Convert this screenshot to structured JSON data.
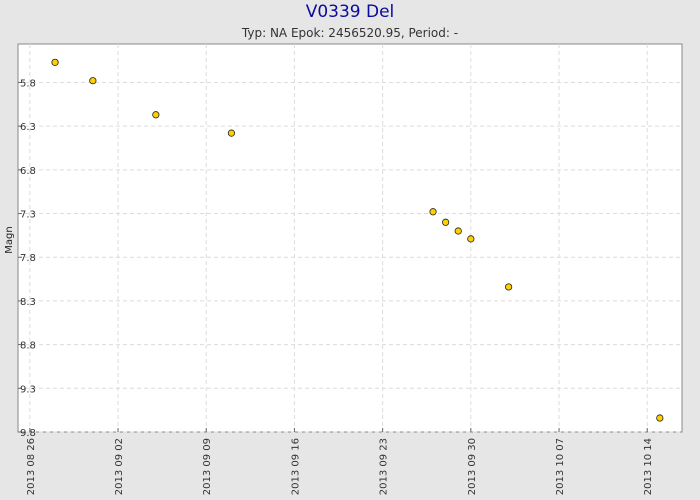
{
  "chart_data": {
    "type": "scatter",
    "title": "V0339 Del",
    "subtitle": "Typ: NA Epok: 2456520.95, Period: -",
    "xlabel": "",
    "ylabel": "Magn",
    "y_inverted": true,
    "xlim": [
      "2013-08-25",
      "2013-10-16"
    ],
    "ylim": [
      5.6,
      9.8
    ],
    "x_ticks": [
      "2013 08 26",
      "2013 09 02",
      "2013 09 09",
      "2013 09 16",
      "2013 09 23",
      "2013 09 30",
      "2013 10 07",
      "2013 10 14"
    ],
    "y_ticks": [
      "5.8",
      "6.3",
      "6.8",
      "7.3",
      "7.8",
      "8.3",
      "8.8",
      "9.3",
      "9.8"
    ],
    "grid": true,
    "marker_color": "#ffd000",
    "marker_edge": "#222222",
    "points": [
      {
        "x": "2013-08-28",
        "y": 5.57
      },
      {
        "x": "2013-08-31",
        "y": 5.78
      },
      {
        "x": "2013-09-05",
        "y": 6.17
      },
      {
        "x": "2013-09-11",
        "y": 6.38
      },
      {
        "x": "2013-09-27",
        "y": 7.28
      },
      {
        "x": "2013-09-28",
        "y": 7.4
      },
      {
        "x": "2013-09-29",
        "y": 7.5
      },
      {
        "x": "2013-09-30",
        "y": 7.59
      },
      {
        "x": "2013-10-03",
        "y": 8.14
      },
      {
        "x": "2013-10-15",
        "y": 9.64
      }
    ]
  }
}
